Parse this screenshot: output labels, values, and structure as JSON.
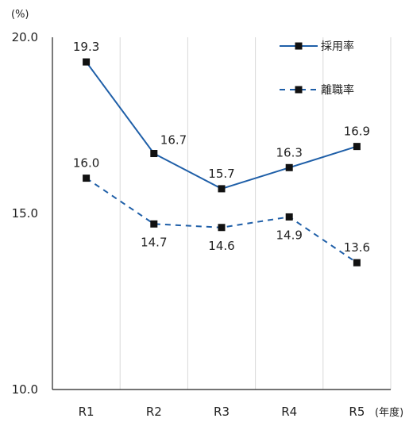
{
  "chart_data": {
    "type": "line",
    "y_unit": "(%)",
    "x_unit": "(年度)",
    "categories": [
      "R1",
      "R2",
      "R3",
      "R4",
      "R5"
    ],
    "ylim": [
      10.0,
      20.0
    ],
    "yticks": [
      "10.0",
      "15.0",
      "20.0"
    ],
    "grid": "vertical",
    "legend_position": "top-right",
    "series": [
      {
        "name": "採用率",
        "values": [
          19.3,
          16.7,
          15.7,
          16.3,
          16.9
        ],
        "labels": [
          "19.3",
          "16.7",
          "15.7",
          "16.3",
          "16.9"
        ],
        "line_style": "solid",
        "marker": "square",
        "color": "#1f5fa8"
      },
      {
        "name": "離職率",
        "values": [
          16.0,
          14.7,
          14.6,
          14.9,
          13.6
        ],
        "labels": [
          "16.0",
          "14.7",
          "14.6",
          "14.9",
          "13.6"
        ],
        "line_style": "dashed",
        "marker": "square",
        "color": "#1f5fa8"
      }
    ],
    "colors": {
      "axis": "#222222",
      "grid": "#d9d9d9",
      "marker": "#111111"
    }
  }
}
